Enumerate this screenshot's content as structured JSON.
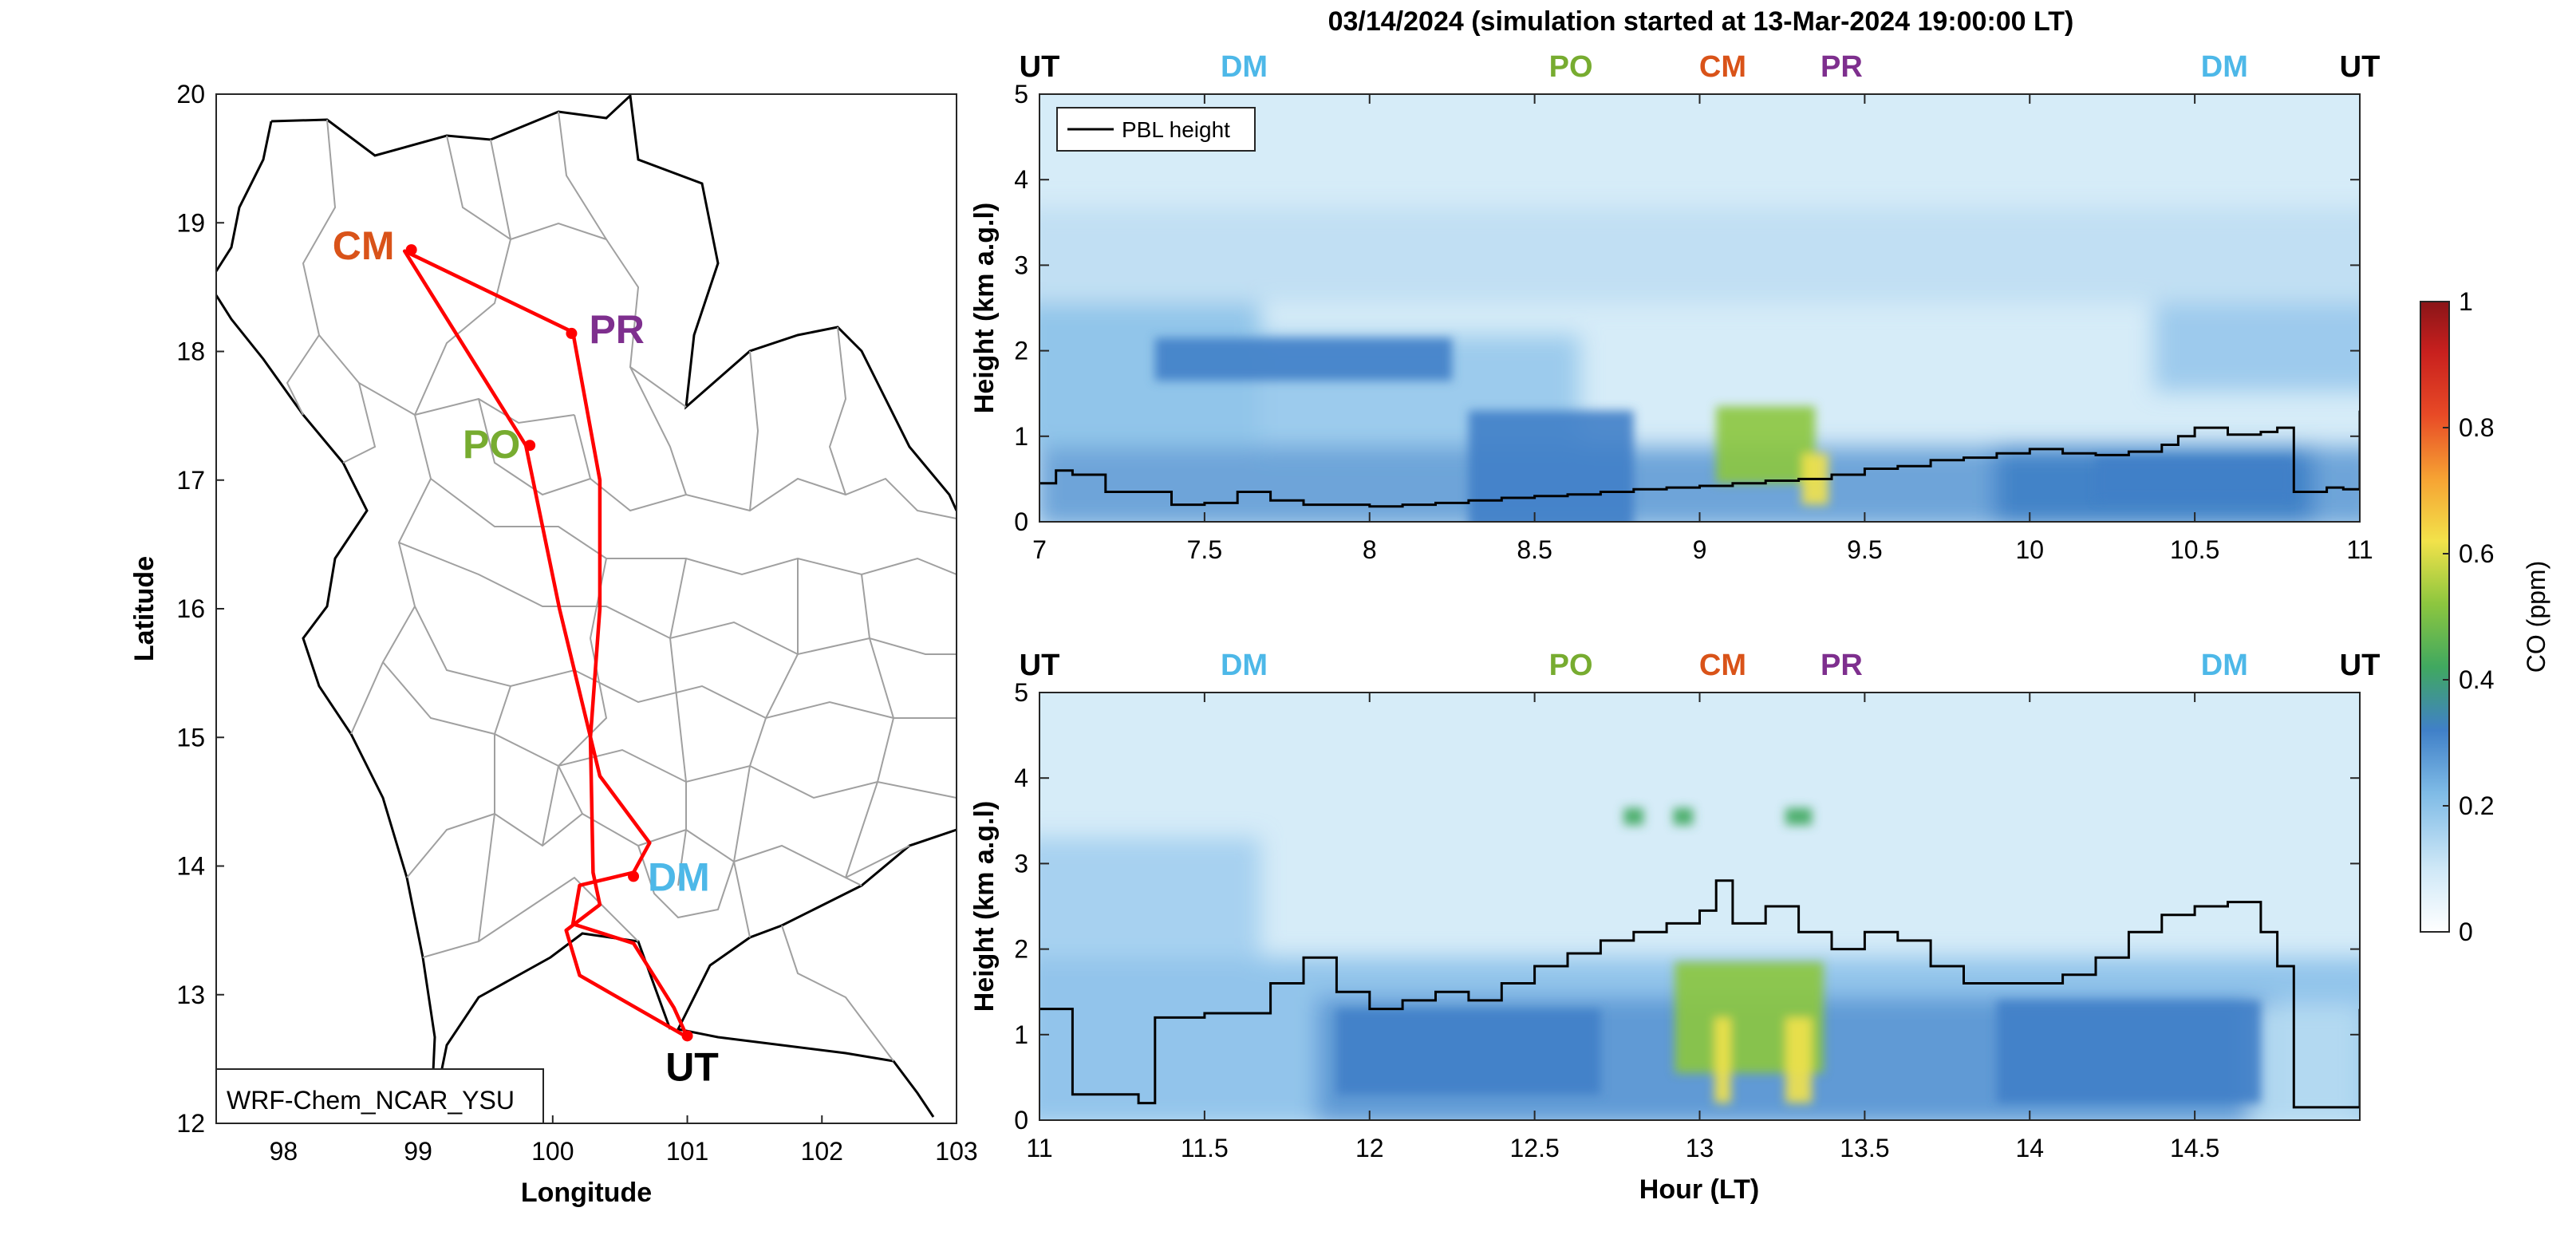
{
  "title": "03/14/2024 (simulation started at 13-Mar-2024 19:00:00 LT)",
  "colors": {
    "UT": "#000000",
    "DM": "#4db8e8",
    "PO": "#77ac30",
    "CM": "#d95319",
    "PR": "#7e2f8e",
    "route": "#ff0000",
    "pbl": "#000000",
    "border": "#a0a0a0"
  },
  "chart_data": [
    {
      "type": "map",
      "name": "route_map",
      "xlabel": "Longitude",
      "ylabel": "Latitude",
      "xlim": [
        97.5,
        103
      ],
      "ylim": [
        12,
        20
      ],
      "xticks": [
        "98",
        "99",
        "100",
        "101",
        "102",
        "103"
      ],
      "yticks": [
        "12",
        "13",
        "14",
        "15",
        "16",
        "17",
        "18",
        "19",
        "20"
      ],
      "legend": "WRF-Chem_NCAR_YSU",
      "route": [
        [
          101.0,
          12.67
        ],
        [
          100.2,
          13.15
        ],
        [
          100.1,
          13.5
        ],
        [
          100.35,
          13.7
        ],
        [
          100.3,
          13.95
        ],
        [
          100.28,
          15.0
        ],
        [
          100.35,
          16.0
        ],
        [
          100.35,
          17.0
        ],
        [
          100.15,
          18.15
        ],
        [
          98.9,
          18.78
        ],
        [
          99.8,
          17.27
        ],
        [
          100.05,
          16.0
        ],
        [
          100.35,
          14.7
        ],
        [
          100.72,
          14.18
        ],
        [
          100.6,
          13.95
        ],
        [
          100.2,
          13.85
        ],
        [
          100.15,
          13.55
        ],
        [
          100.6,
          13.4
        ],
        [
          100.9,
          12.9
        ],
        [
          101.0,
          12.67
        ]
      ],
      "sites": [
        {
          "label": "CM",
          "lon": 98.95,
          "lat": 18.79
        },
        {
          "label": "PR",
          "lon": 100.14,
          "lat": 18.14
        },
        {
          "label": "PO",
          "lon": 99.83,
          "lat": 17.27
        },
        {
          "label": "DM",
          "lon": 100.6,
          "lat": 13.92
        },
        {
          "label": "UT",
          "lon": 101.0,
          "lat": 12.68
        }
      ]
    },
    {
      "type": "heatmap",
      "name": "curtain_top",
      "ylabel": "Height (km a.g.l)",
      "xlim": [
        7,
        11
      ],
      "ylim": [
        0,
        5
      ],
      "xticks": [
        "7",
        "7.5",
        "8",
        "8.5",
        "9",
        "9.5",
        "10",
        "10.5",
        "11"
      ],
      "yticks": [
        "0",
        "1",
        "2",
        "3",
        "4",
        "5"
      ],
      "site_markers": [
        {
          "label": "UT",
          "x": 7.0
        },
        {
          "label": "DM",
          "x": 7.62
        },
        {
          "label": "PO",
          "x": 8.61
        },
        {
          "label": "CM",
          "x": 9.07
        },
        {
          "label": "PR",
          "x": 9.43
        },
        {
          "label": "DM",
          "x": 10.59
        },
        {
          "label": "UT",
          "x": 11.0
        }
      ],
      "legend": "PBL height",
      "pbl_height": {
        "x": [
          7.0,
          7.05,
          7.1,
          7.2,
          7.3,
          7.4,
          7.5,
          7.6,
          7.7,
          7.8,
          7.9,
          8.0,
          8.1,
          8.2,
          8.3,
          8.4,
          8.5,
          8.6,
          8.7,
          8.8,
          8.9,
          9.0,
          9.1,
          9.2,
          9.3,
          9.4,
          9.5,
          9.6,
          9.7,
          9.8,
          9.9,
          10.0,
          10.1,
          10.2,
          10.3,
          10.4,
          10.45,
          10.5,
          10.6,
          10.7,
          10.75,
          10.8,
          10.9,
          10.95,
          11.0
        ],
        "y": [
          0.45,
          0.6,
          0.55,
          0.35,
          0.35,
          0.2,
          0.22,
          0.35,
          0.25,
          0.2,
          0.2,
          0.18,
          0.2,
          0.22,
          0.25,
          0.28,
          0.3,
          0.32,
          0.35,
          0.38,
          0.4,
          0.42,
          0.45,
          0.48,
          0.5,
          0.55,
          0.62,
          0.65,
          0.72,
          0.75,
          0.8,
          0.85,
          0.8,
          0.78,
          0.82,
          0.9,
          1.0,
          1.1,
          1.02,
          1.05,
          1.1,
          0.35,
          0.4,
          0.38,
          1.3
        ]
      },
      "colormap_variable": "CO (ppm)",
      "co_plumes": [
        {
          "x": 9.2,
          "y": 0.9,
          "dx": 0.3,
          "dy": 0.9,
          "v": 0.45
        },
        {
          "x": 9.35,
          "y": 0.5,
          "dx": 0.08,
          "dy": 0.6,
          "v": 0.6
        },
        {
          "x": 8.55,
          "y": 0.6,
          "dx": 0.5,
          "dy": 1.4,
          "v": 0.32
        },
        {
          "x": 7.8,
          "y": 1.9,
          "dx": 0.9,
          "dy": 0.5,
          "v": 0.3
        },
        {
          "x": 10.5,
          "y": 0.5,
          "dx": 0.6,
          "dy": 0.5,
          "v": 0.3
        }
      ]
    },
    {
      "type": "heatmap",
      "name": "curtain_bottom",
      "xlabel": "Hour (LT)",
      "ylabel": "Height (km a.g.l)",
      "xlim": [
        11,
        15
      ],
      "ylim": [
        0,
        5
      ],
      "xticks": [
        "11",
        "11.5",
        "12",
        "12.5",
        "13",
        "13.5",
        "14",
        "14.5"
      ],
      "yticks": [
        "0",
        "1",
        "2",
        "3",
        "4",
        "5"
      ],
      "site_markers": [
        {
          "label": "UT",
          "x": 11.0
        },
        {
          "label": "DM",
          "x": 11.62
        },
        {
          "label": "PO",
          "x": 12.61
        },
        {
          "label": "CM",
          "x": 13.07
        },
        {
          "label": "PR",
          "x": 13.43
        },
        {
          "label": "DM",
          "x": 14.59
        },
        {
          "label": "UT",
          "x": 15.0
        }
      ],
      "pbl_height": {
        "x": [
          11.0,
          11.05,
          11.1,
          11.2,
          11.3,
          11.35,
          11.5,
          11.6,
          11.7,
          11.8,
          11.9,
          12.0,
          12.1,
          12.2,
          12.3,
          12.4,
          12.5,
          12.6,
          12.7,
          12.8,
          12.9,
          13.0,
          13.05,
          13.1,
          13.2,
          13.3,
          13.4,
          13.5,
          13.6,
          13.7,
          13.8,
          13.9,
          14.0,
          14.1,
          14.2,
          14.3,
          14.4,
          14.5,
          14.6,
          14.7,
          14.75,
          14.8,
          14.9,
          14.95,
          15.0
        ],
        "y": [
          1.3,
          1.3,
          0.3,
          0.3,
          0.2,
          1.2,
          1.25,
          1.25,
          1.6,
          1.9,
          1.5,
          1.3,
          1.4,
          1.5,
          1.4,
          1.6,
          1.8,
          1.95,
          2.1,
          2.2,
          2.3,
          2.45,
          2.8,
          2.3,
          2.5,
          2.2,
          2.0,
          2.2,
          2.1,
          1.8,
          1.6,
          1.6,
          1.6,
          1.7,
          1.9,
          2.2,
          2.4,
          2.5,
          2.55,
          2.2,
          1.8,
          0.15,
          0.15,
          0.15,
          1.3
        ]
      },
      "co_plumes": [
        {
          "x": 13.15,
          "y": 1.2,
          "dx": 0.45,
          "dy": 1.3,
          "v": 0.45
        },
        {
          "x": 13.3,
          "y": 0.7,
          "dx": 0.08,
          "dy": 1.0,
          "v": 0.6
        },
        {
          "x": 13.07,
          "y": 0.7,
          "dx": 0.05,
          "dy": 1.0,
          "v": 0.55
        },
        {
          "x": 12.8,
          "y": 3.55,
          "dx": 0.06,
          "dy": 0.2,
          "v": 0.4
        },
        {
          "x": 12.95,
          "y": 3.55,
          "dx": 0.06,
          "dy": 0.2,
          "v": 0.4
        },
        {
          "x": 13.3,
          "y": 3.55,
          "dx": 0.08,
          "dy": 0.2,
          "v": 0.4
        },
        {
          "x": 12.3,
          "y": 0.8,
          "dx": 0.8,
          "dy": 1.0,
          "v": 0.28
        },
        {
          "x": 14.3,
          "y": 0.8,
          "dx": 0.8,
          "dy": 1.2,
          "v": 0.25
        }
      ]
    },
    {
      "type": "colorbar",
      "name": "co_colorbar",
      "label": "CO (ppm)",
      "range": [
        0,
        1
      ],
      "ticks": [
        "0",
        "0.2",
        "0.4",
        "0.6",
        "0.8",
        "1"
      ]
    }
  ]
}
